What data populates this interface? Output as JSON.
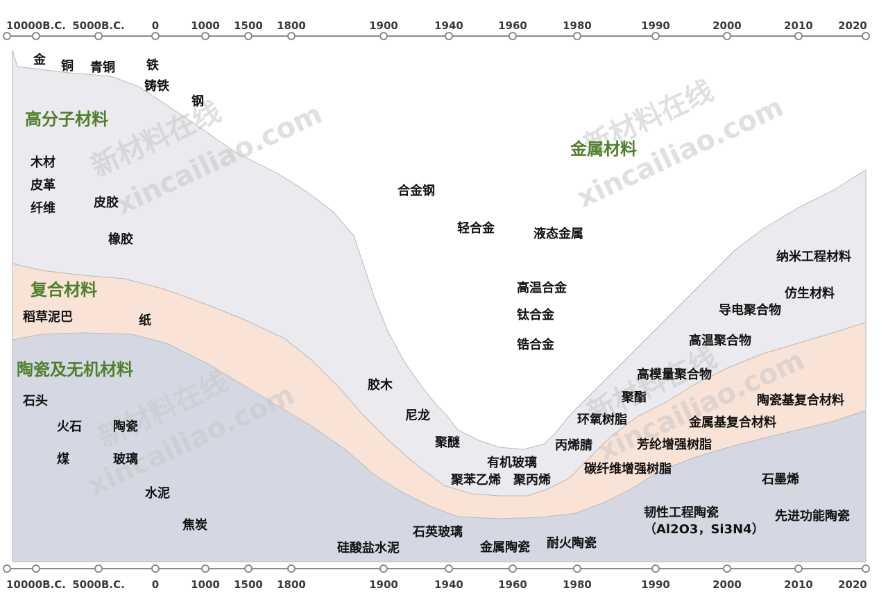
{
  "timeline": {
    "ticks": [
      "10000B.C.",
      "5000B.C.",
      "0",
      "1000",
      "1500",
      "1800",
      "1900",
      "1940",
      "1960",
      "1980",
      "1990",
      "2000",
      "2010",
      "2020"
    ]
  },
  "categories": {
    "polymer": "高分子材料",
    "metal": "金属材料",
    "composite": "复合材料",
    "ceramic": "陶瓷及无机材料"
  },
  "materials": {
    "gold": "金",
    "copper": "铜",
    "bronze": "青铜",
    "iron": "铁",
    "cast_iron": "铸铁",
    "steel": "钢",
    "wood": "木材",
    "leather": "皮革",
    "fiber": "纤维",
    "hide_glue": "皮胶",
    "rubber": "橡胶",
    "alloy_steel": "合金钢",
    "light_alloy": "轻合金",
    "liquid_metal": "液态金属",
    "superalloy": "高温合金",
    "titanium_alloy": "钛合金",
    "zirconium_alloy": "锆合金",
    "nano_eng": "纳米工程材料",
    "biomimetic": "仿生材料",
    "conductive_polymer": "导电聚合物",
    "high_temp_polymer": "高温聚合物",
    "high_mod_polymer": "高模量聚合物",
    "polyester": "聚酯",
    "epoxy": "环氧树脂",
    "acrylonitrile": "丙烯腈",
    "plywood": "胶木",
    "nylon": "尼龙",
    "polyether": "聚醚",
    "pmma": "有机玻璃",
    "polystyrene": "聚苯乙烯",
    "polypropylene": "聚丙烯",
    "straw_mud": "稻草泥巴",
    "paper": "纸",
    "ceramic_matrix": "陶瓷基复合材料",
    "metal_matrix": "金属基复合材料",
    "aramid": "芳纶增强树脂",
    "carbon_fiber": "碳纤维增强树脂",
    "stone": "石头",
    "flint": "火石",
    "pottery": "陶瓷",
    "coal": "煤",
    "glass": "玻璃",
    "cement": "水泥",
    "coke": "焦炭",
    "silicate_cement": "硅酸盐水泥",
    "quartz_glass": "石英玻璃",
    "cermet": "金属陶瓷",
    "refractory": "耐火陶瓷",
    "graphene": "石墨烯",
    "tough_ceramic": "韧性工程陶瓷",
    "tough_ceramic_formula": "（Al2O3，Si3N4）",
    "advanced_ceramic": "先进功能陶瓷"
  },
  "watermark": {
    "cn": "新材料在线",
    "en": "xincailiao.com"
  },
  "colors": {
    "polymer": "#ebeaee",
    "composite": "#f9e2d6",
    "ceramic": "#d5d8e3",
    "axis": "#8a8a8a",
    "category_text": "#4f7f2c"
  }
}
